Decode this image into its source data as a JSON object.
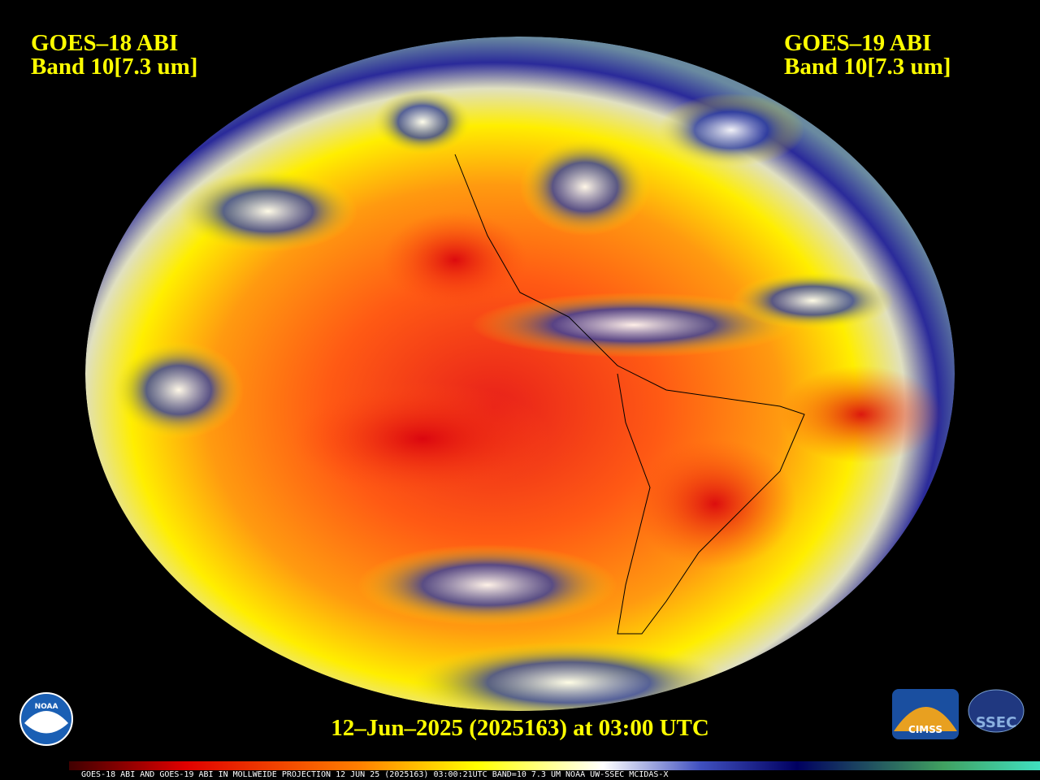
{
  "header": {
    "left": {
      "title": "GOES–18 ABI",
      "band": "Band 10[7.3 um]"
    },
    "right": {
      "title": "GOES–19 ABI",
      "band": "Band 10[7.3 um]"
    }
  },
  "timestamp": "12–Jun–2025 (2025163) at 03:00 UTC",
  "footer": "GOES-18 ABI AND GOES-19 ABI IN MOLLWEIDE PROJECTION 12 JUN 25 (2025163) 03:00:21UTC BAND=10 7.3 UM NOAA UW-SSEC MCIDAS-X",
  "logos": {
    "noaa": "NOAA",
    "cimss": "CIMSS",
    "ssec": "SSEC"
  }
}
